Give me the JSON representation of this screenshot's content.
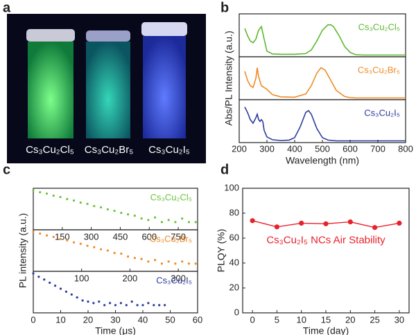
{
  "panel_labels": [
    "a",
    "b",
    "c",
    "d"
  ],
  "photo": {
    "labels": [
      "Cs₃Cu₂Cl₅",
      "Cs₃Cu₂Br₅",
      "Cs₃Cu₂I₅"
    ]
  },
  "chart_data": [
    {
      "type": "line",
      "xlabel": "Wavelength (nm)",
      "ylabel": "Abs/PL Intensity (a.u.)",
      "xlim": [
        200,
        800
      ],
      "xticks": [
        200,
        300,
        400,
        500,
        600,
        700,
        800
      ],
      "ylim": [
        0,
        1
      ],
      "subplots": [
        {
          "label": "Cs₃Cu₂Cl₅",
          "color": "#5cb82e",
          "x": [
            220,
            230,
            240,
            250,
            260,
            270,
            280,
            290,
            300,
            320,
            350,
            400,
            440,
            460,
            480,
            500,
            520,
            530,
            540,
            560,
            580,
            600,
            620,
            650,
            700,
            750,
            800
          ],
          "values": [
            0.75,
            0.55,
            0.4,
            0.35,
            0.45,
            0.7,
            0.8,
            0.45,
            0.12,
            0.04,
            0.03,
            0.03,
            0.05,
            0.15,
            0.4,
            0.7,
            0.85,
            0.85,
            0.8,
            0.55,
            0.25,
            0.08,
            0.02,
            0.01,
            0.01,
            0.01,
            0.01
          ]
        },
        {
          "label": "Cs₃Cu₂Br₅",
          "color": "#f08a24",
          "x": [
            220,
            230,
            240,
            250,
            260,
            265,
            270,
            280,
            290,
            300,
            320,
            350,
            400,
            440,
            460,
            480,
            495,
            510,
            530,
            550,
            580,
            600,
            620,
            650,
            700,
            750,
            800
          ],
          "values": [
            0.75,
            0.5,
            0.35,
            0.3,
            0.55,
            0.85,
            0.6,
            0.35,
            0.3,
            0.25,
            0.1,
            0.04,
            0.03,
            0.12,
            0.35,
            0.7,
            0.85,
            0.78,
            0.5,
            0.22,
            0.05,
            0.02,
            0.01,
            0.01,
            0.01,
            0.01,
            0.01
          ]
        },
        {
          "label": "Cs₃Cu₂I₅",
          "color": "#2b3a9e",
          "x": [
            220,
            230,
            240,
            250,
            260,
            265,
            270,
            275,
            280,
            285,
            290,
            300,
            320,
            350,
            380,
            400,
            420,
            440,
            450,
            460,
            480,
            500,
            520,
            550,
            600,
            700,
            800
          ],
          "values": [
            0.95,
            0.8,
            0.6,
            0.5,
            0.65,
            0.75,
            0.6,
            0.55,
            0.6,
            0.55,
            0.3,
            0.12,
            0.04,
            0.02,
            0.03,
            0.1,
            0.4,
            0.8,
            0.85,
            0.75,
            0.35,
            0.1,
            0.03,
            0.01,
            0.01,
            0.01,
            0.01
          ]
        }
      ]
    },
    {
      "type": "scatter",
      "xlabel": "Time (μs)",
      "ylabel": "PL intensity (a.u.)",
      "log_y": true,
      "subplots": [
        {
          "label": "Cs₃Cu₂Cl₅",
          "color": "#6cc23a",
          "xlim": [
            0,
            850
          ],
          "xticks": [
            150,
            300,
            450,
            600,
            750
          ],
          "ylim": [
            1,
            1000
          ],
          "x": [
            0,
            35,
            70,
            105,
            140,
            175,
            210,
            245,
            280,
            315,
            350,
            385,
            420,
            455,
            490,
            525,
            560,
            595,
            630,
            665,
            700,
            735,
            770,
            805,
            840
          ],
          "values": [
            1000,
            690,
            530,
            350,
            270,
            180,
            135,
            90,
            70,
            46,
            36,
            24,
            18,
            12,
            9,
            7,
            4,
            3,
            5,
            2,
            3,
            2,
            4,
            2,
            2
          ]
        },
        {
          "label": "Cs₃Cu₂Br₅",
          "color": "#f08a24",
          "xlim": [
            0,
            340
          ],
          "xticks": [
            100,
            200,
            300
          ],
          "ylim": [
            1,
            1000
          ],
          "x": [
            0,
            14,
            28,
            42,
            56,
            70,
            84,
            98,
            112,
            126,
            140,
            154,
            168,
            182,
            196,
            210,
            224,
            238,
            252,
            266,
            280,
            294,
            308,
            322,
            336
          ],
          "values": [
            1000,
            720,
            500,
            370,
            255,
            190,
            128,
            97,
            66,
            50,
            33,
            26,
            16,
            14,
            8,
            6,
            5,
            3,
            4,
            2,
            3,
            2,
            3,
            2,
            2
          ]
        },
        {
          "label": "Cs₃Cu₂I₅",
          "color": "#2b3a9e",
          "xlim": [
            0,
            60
          ],
          "xticks": [
            0,
            10,
            20,
            30,
            40,
            50,
            60
          ],
          "ylim": [
            1,
            1000
          ],
          "x": [
            0,
            2,
            4,
            6,
            8,
            10,
            12,
            14,
            16,
            18,
            20,
            22,
            24,
            26,
            28,
            30,
            32,
            34,
            36,
            38,
            40,
            42,
            44,
            46,
            48
          ],
          "values": [
            1000,
            520,
            300,
            160,
            90,
            50,
            28,
            16,
            9,
            5,
            4,
            3,
            4,
            2,
            3,
            2,
            3,
            2,
            4,
            2,
            2,
            3,
            2,
            2,
            2
          ]
        }
      ]
    },
    {
      "type": "line",
      "xlabel": "Time (day)",
      "ylabel": "PLQY (%)",
      "annotation": "Cs₃Cu₂I₅ NCs Air Stability",
      "color": "#e8212b",
      "xlim": [
        -2,
        32
      ],
      "xticks": [
        0,
        5,
        10,
        15,
        20,
        25,
        30
      ],
      "ylim": [
        0,
        100
      ],
      "yticks": [
        0,
        20,
        40,
        60,
        80,
        100
      ],
      "x": [
        0,
        5,
        10,
        15,
        20,
        25,
        30
      ],
      "values": [
        74,
        69,
        72,
        71.5,
        73,
        68.5,
        72
      ]
    }
  ]
}
